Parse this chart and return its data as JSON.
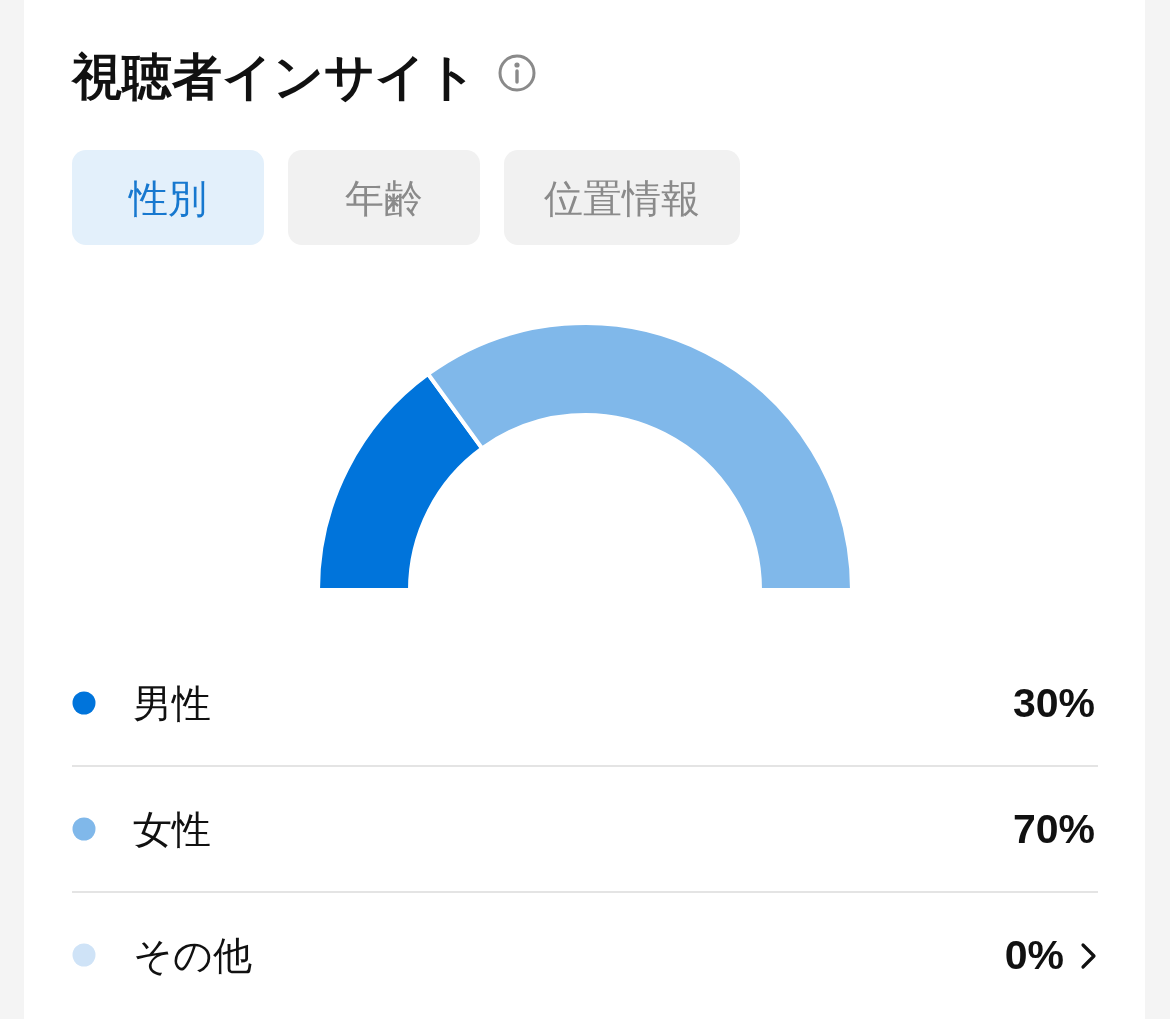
{
  "chart_data": {
    "type": "donut",
    "title": "視聴者インサイト",
    "annotations": [
      "性別",
      "年齢",
      "位置情報"
    ],
    "categories": [
      "男性",
      "女性",
      "その他"
    ],
    "values": [
      30,
      70,
      0
    ],
    "colors": [
      "#0074db",
      "#80b8ea",
      "#cfe3f7"
    ],
    "value_labels": [
      "30%",
      "70%",
      "0%"
    ],
    "legend": "bottom"
  }
}
